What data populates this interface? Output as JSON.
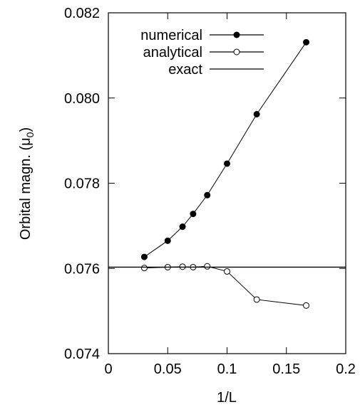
{
  "chart_data": {
    "type": "line",
    "title": "",
    "xlabel": "1/L",
    "ylabel_main": "Orbital magn. (μ",
    "ylabel_sub": "0",
    "ylabel_close": ")",
    "xlim": [
      0,
      0.2
    ],
    "ylim": [
      0.074,
      0.082
    ],
    "xticks": [
      0,
      0.05,
      0.1,
      0.15,
      0.2
    ],
    "xtick_labels": [
      "0",
      "0.05",
      "0.1",
      "0.15",
      "0.2"
    ],
    "yticks": [
      0.074,
      0.076,
      0.078,
      0.08,
      0.082
    ],
    "ytick_labels": [
      "0.074",
      "0.076",
      "0.078",
      "0.080",
      "0.082"
    ],
    "grid": false,
    "legend_position": "top-left",
    "series": [
      {
        "name": "numerical",
        "marker": "filled-circle",
        "color": "#000000",
        "x": [
          0.0303,
          0.05,
          0.0625,
          0.0714,
          0.0833,
          0.1,
          0.125,
          0.1667
        ],
        "y": [
          0.07627,
          0.07665,
          0.07698,
          0.07728,
          0.07772,
          0.07846,
          0.07962,
          0.08131
        ]
      },
      {
        "name": "analytical",
        "marker": "open-circle",
        "color": "#000000",
        "x": [
          0.0303,
          0.05,
          0.0625,
          0.0714,
          0.0833,
          0.1,
          0.125,
          0.1667
        ],
        "y": [
          0.07601,
          0.07603,
          0.07604,
          0.07603,
          0.07605,
          0.07593,
          0.07527,
          0.07513
        ]
      },
      {
        "name": "exact",
        "marker": "none",
        "color": "#000000",
        "constant": 0.07603
      }
    ]
  }
}
